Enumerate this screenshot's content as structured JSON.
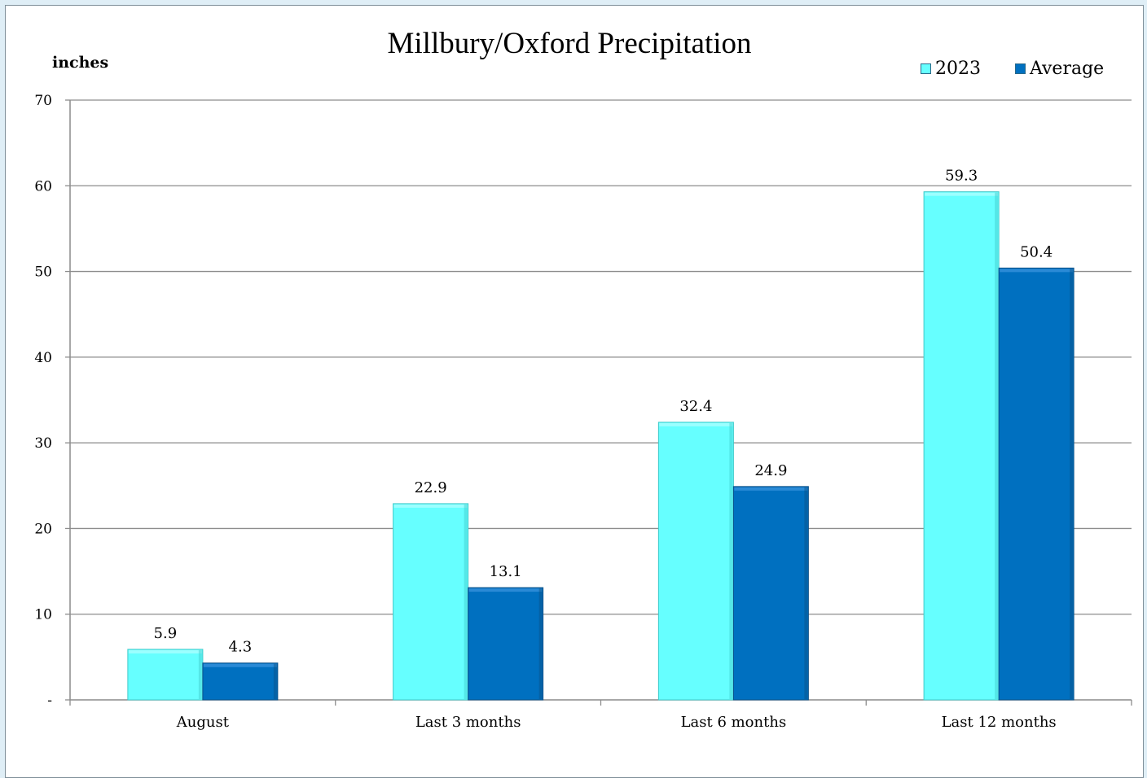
{
  "chart_data": {
    "type": "bar",
    "title": "Millbury/Oxford Precipitation",
    "ylabel": "inches",
    "xlabel": "",
    "categories": [
      "August",
      "Last 3 months",
      "Last 6 months",
      "Last 12 months"
    ],
    "series": [
      {
        "name": "2023",
        "values": [
          5.9,
          22.9,
          32.4,
          59.3
        ],
        "color": "#66ffff"
      },
      {
        "name": "Average",
        "values": [
          4.3,
          13.1,
          24.9,
          50.4
        ],
        "color": "#0070c0"
      }
    ],
    "ylim": [
      0,
      70
    ],
    "yticks": [
      0,
      10,
      20,
      30,
      40,
      50,
      60,
      70
    ],
    "ytick_labels": [
      "-",
      "10",
      "20",
      "30",
      "40",
      "50",
      "60",
      "70"
    ],
    "grid": true,
    "legend_position": "top-right"
  }
}
